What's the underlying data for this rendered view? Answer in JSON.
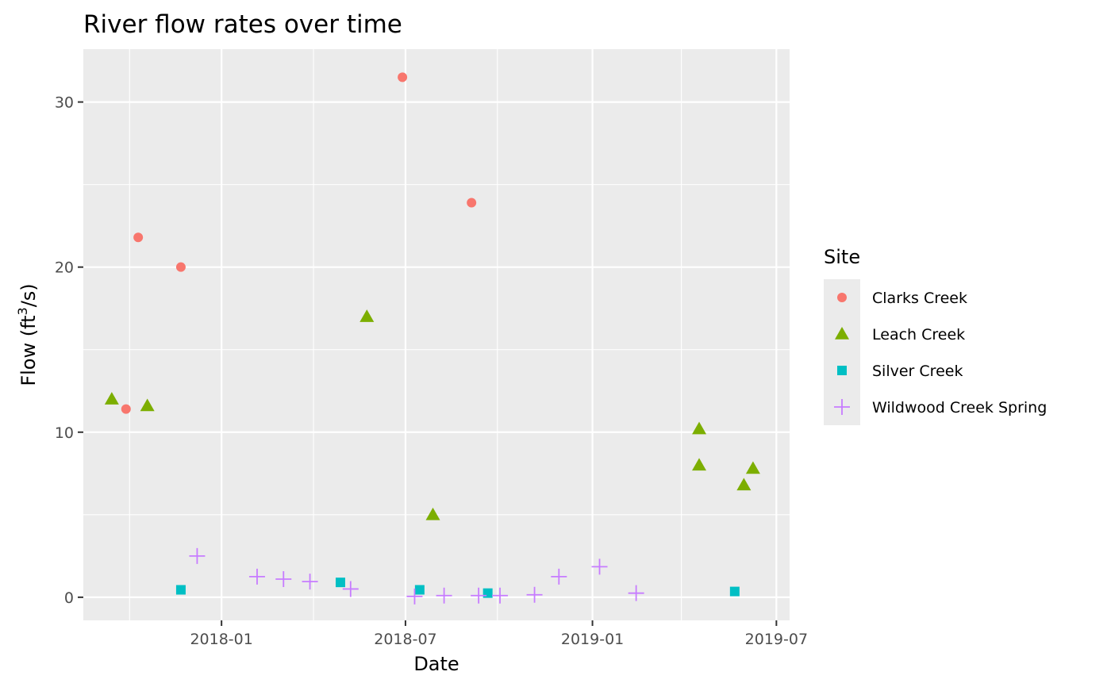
{
  "chart_data": {
    "type": "scatter",
    "title": "River flow rates over time",
    "xlabel": "Date",
    "ylabel": "Flow (ft",
    "ylabel_sup": "3",
    "ylabel_suffix": "/s)",
    "x_axis": "date",
    "xlim": [
      "2017-08-18",
      "2019-07-14"
    ],
    "ylim": [
      -1.4,
      33.2
    ],
    "x_ticks": [
      "2018-01-01",
      "2018-07-01",
      "2019-01-01",
      "2019-07-01"
    ],
    "x_tick_labels": [
      "2018-01",
      "2018-07",
      "2019-01",
      "2019-07"
    ],
    "y_ticks": [
      0,
      10,
      20,
      30
    ],
    "y_tick_labels": [
      "0",
      "10",
      "20",
      "30"
    ],
    "grid": true,
    "legend": {
      "title": "Site",
      "position": "right"
    },
    "series": [
      {
        "name": "Clarks Creek",
        "shape": "circle",
        "color": "#F8766D",
        "points": [
          {
            "x": "2017-09-29",
            "y": 11.4
          },
          {
            "x": "2017-10-11",
            "y": 21.8
          },
          {
            "x": "2017-11-22",
            "y": 20.0
          },
          {
            "x": "2018-06-28",
            "y": 31.5
          },
          {
            "x": "2018-09-04",
            "y": 23.9
          }
        ]
      },
      {
        "name": "Leach Creek",
        "shape": "triangle",
        "color": "#7CAE00",
        "points": [
          {
            "x": "2017-09-15",
            "y": 12.0
          },
          {
            "x": "2017-10-20",
            "y": 11.6
          },
          {
            "x": "2018-05-24",
            "y": 17.0
          },
          {
            "x": "2018-07-28",
            "y": 5.0
          },
          {
            "x": "2019-04-16",
            "y": 10.2
          },
          {
            "x": "2019-04-16",
            "y": 8.0
          },
          {
            "x": "2019-05-30",
            "y": 6.8
          },
          {
            "x": "2019-06-08",
            "y": 7.8
          }
        ]
      },
      {
        "name": "Silver Creek",
        "shape": "square",
        "color": "#00BFC4",
        "points": [
          {
            "x": "2017-11-22",
            "y": 0.45
          },
          {
            "x": "2018-04-28",
            "y": 0.9
          },
          {
            "x": "2018-07-15",
            "y": 0.45
          },
          {
            "x": "2018-09-20",
            "y": 0.25
          },
          {
            "x": "2019-05-21",
            "y": 0.35
          }
        ]
      },
      {
        "name": "Wildwood Creek Spring",
        "shape": "plus",
        "color": "#C77CFF",
        "points": [
          {
            "x": "2017-12-08",
            "y": 2.5
          },
          {
            "x": "2018-02-05",
            "y": 1.25
          },
          {
            "x": "2018-03-03",
            "y": 1.1
          },
          {
            "x": "2018-03-29",
            "y": 0.95
          },
          {
            "x": "2018-05-08",
            "y": 0.5
          },
          {
            "x": "2018-07-10",
            "y": 0.05
          },
          {
            "x": "2018-08-08",
            "y": 0.1
          },
          {
            "x": "2018-09-11",
            "y": 0.1
          },
          {
            "x": "2018-10-02",
            "y": 0.1
          },
          {
            "x": "2018-11-05",
            "y": 0.15
          },
          {
            "x": "2018-11-29",
            "y": 1.25
          },
          {
            "x": "2019-01-08",
            "y": 1.85
          },
          {
            "x": "2019-02-13",
            "y": 0.25
          }
        ]
      }
    ]
  }
}
